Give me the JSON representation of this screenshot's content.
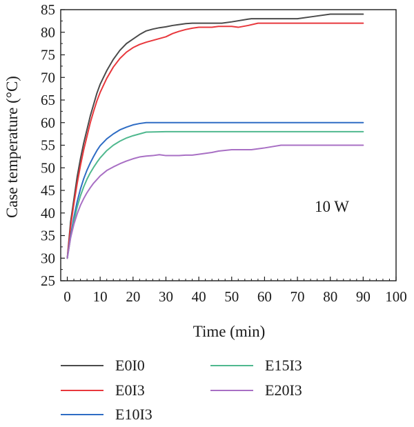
{
  "chart_data": {
    "type": "line",
    "xlabel": "Time (min)",
    "ylabel": "Case temperature (°C)",
    "xlim": [
      -2,
      100
    ],
    "ylim": [
      25,
      85
    ],
    "x_ticks": [
      0,
      10,
      20,
      30,
      40,
      50,
      60,
      70,
      80,
      90,
      100
    ],
    "y_ticks": [
      25,
      30,
      35,
      40,
      45,
      50,
      55,
      60,
      65,
      70,
      75,
      80,
      85
    ],
    "annotation": "10 W",
    "grid": false,
    "legend_position": "bottom",
    "series": [
      {
        "name": "E0I0",
        "color": "#4a4a4a",
        "x": [
          0,
          1,
          2,
          3,
          4,
          5,
          6,
          7,
          8,
          9,
          10,
          12,
          14,
          16,
          18,
          20,
          22,
          24,
          26,
          28,
          30,
          32,
          34,
          36,
          38,
          40,
          45,
          47,
          50,
          55,
          56,
          60,
          70,
          75,
          80,
          85,
          90
        ],
        "y": [
          30,
          38,
          43,
          48,
          52,
          55.5,
          58.5,
          61.5,
          64,
          66.5,
          68.5,
          71.5,
          74,
          76,
          77.5,
          78.5,
          79.5,
          80.3,
          80.7,
          81,
          81.2,
          81.5,
          81.7,
          81.9,
          82,
          82,
          82,
          82,
          82.3,
          82.9,
          83,
          83,
          83,
          83.5,
          84,
          84,
          84
        ]
      },
      {
        "name": "E0I3",
        "color": "#e8373c",
        "x": [
          0,
          1,
          2,
          3,
          4,
          5,
          6,
          7,
          8,
          9,
          10,
          12,
          14,
          16,
          18,
          20,
          22,
          24,
          26,
          28,
          30,
          32,
          34,
          36,
          38,
          40,
          44,
          46,
          50,
          52,
          55,
          58,
          60,
          70,
          80,
          90
        ],
        "y": [
          30,
          37,
          42,
          46.5,
          50.5,
          54,
          57,
          60,
          62.5,
          64.8,
          66.7,
          69.8,
          72.3,
          74.2,
          75.6,
          76.6,
          77.3,
          77.8,
          78.2,
          78.6,
          79,
          79.7,
          80.2,
          80.6,
          80.9,
          81.1,
          81.1,
          81.3,
          81.3,
          81.1,
          81.5,
          82,
          82,
          82,
          82,
          82
        ]
      },
      {
        "name": "E10I3",
        "color": "#2e6cc4",
        "x": [
          0,
          1,
          2,
          3,
          4,
          5,
          6,
          7,
          8,
          9,
          10,
          12,
          14,
          16,
          18,
          20,
          22,
          24,
          30,
          40,
          50,
          60,
          70,
          80,
          90
        ],
        "y": [
          30,
          35,
          39,
          42.5,
          45.3,
          47.6,
          49.5,
          51.1,
          52.5,
          53.8,
          54.9,
          56.4,
          57.5,
          58.4,
          59,
          59.5,
          59.8,
          60,
          60,
          60,
          60,
          60,
          60,
          60,
          60
        ]
      },
      {
        "name": "E15I3",
        "color": "#4fb88e",
        "x": [
          0,
          1,
          2,
          3,
          4,
          5,
          6,
          7,
          8,
          9,
          10,
          12,
          14,
          16,
          18,
          20,
          22,
          24,
          30,
          40,
          50,
          60,
          70,
          80,
          90
        ],
        "y": [
          30,
          34.5,
          38.2,
          41.3,
          43.8,
          45.8,
          47.5,
          48.9,
          50.1,
          51.2,
          52.2,
          53.8,
          55,
          55.9,
          56.6,
          57.1,
          57.5,
          57.9,
          58,
          58,
          58,
          58,
          58,
          58,
          58
        ]
      },
      {
        "name": "E20I3",
        "color": "#a86fc4",
        "x": [
          0,
          1,
          2,
          3,
          4,
          5,
          6,
          7,
          8,
          9,
          10,
          12,
          14,
          16,
          18,
          20,
          22,
          24,
          26,
          28,
          30,
          34,
          36,
          38,
          40,
          44,
          46,
          50,
          56,
          60,
          65,
          70,
          80,
          90
        ],
        "y": [
          30,
          34.5,
          37.5,
          39.8,
          41.7,
          43.2,
          44.5,
          45.6,
          46.6,
          47.4,
          48.2,
          49.4,
          50.2,
          50.9,
          51.5,
          52,
          52.4,
          52.6,
          52.7,
          52.9,
          52.7,
          52.7,
          52.8,
          52.8,
          53,
          53.4,
          53.7,
          54,
          54,
          54.4,
          55,
          55,
          55,
          55
        ]
      }
    ]
  }
}
